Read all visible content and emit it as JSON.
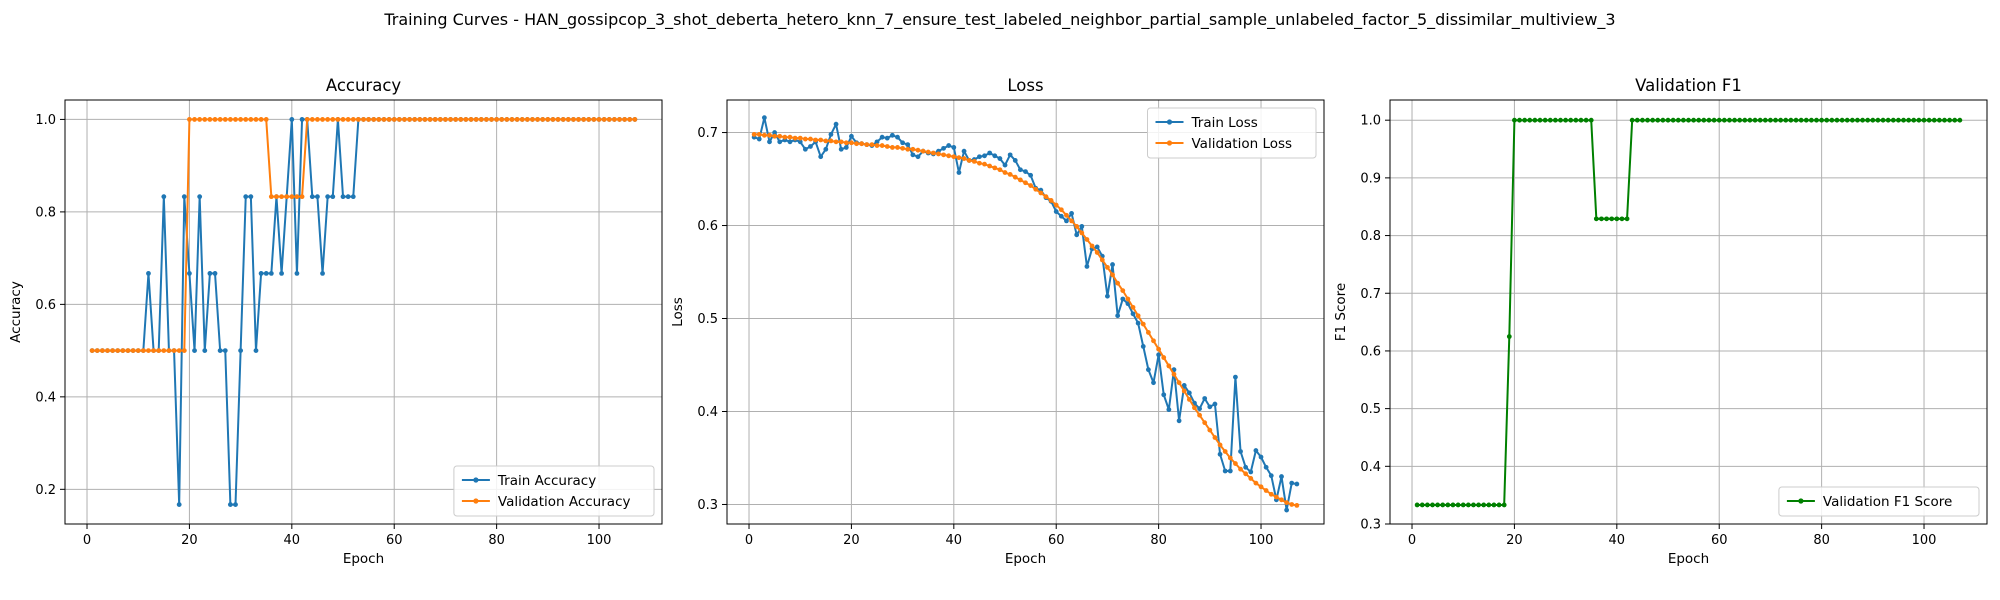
{
  "figure_title": "Training Curves - HAN_gossipcop_3_shot_deberta_hetero_knn_7_ensure_test_labeled_neighbor_partial_sample_unlabeled_factor_5_dissimilar_multiview_3",
  "colors": {
    "blue": "#1f77b4",
    "orange": "#ff7f0e",
    "green": "#008000",
    "grid": "#b0b0b0"
  },
  "chart_data": [
    {
      "type": "line",
      "title": "Accuracy",
      "xlabel": "Epoch",
      "ylabel": "Accuracy",
      "xlim": [
        -4.3,
        112.3
      ],
      "ylim": [
        0.125,
        1.042
      ],
      "xticks": [
        0,
        20,
        40,
        60,
        80,
        100
      ],
      "yticks": [
        0.2,
        0.4,
        0.6,
        0.8,
        1.0
      ],
      "ytick_labels": [
        "0.2",
        "0.4",
        "0.6",
        "0.8",
        "1.0"
      ],
      "grid": true,
      "legend_position": "lower-right",
      "series": [
        {
          "name": "Train Accuracy",
          "color": "#1f77b4",
          "x_start": 1,
          "values": [
            0.5,
            0.5,
            0.5,
            0.5,
            0.5,
            0.5,
            0.5,
            0.5,
            0.5,
            0.5,
            0.5,
            0.667,
            0.5,
            0.5,
            0.833,
            0.5,
            0.5,
            0.167,
            0.833,
            0.667,
            0.5,
            0.833,
            0.5,
            0.667,
            0.667,
            0.5,
            0.5,
            0.167,
            0.167,
            0.5,
            0.833,
            0.833,
            0.5,
            0.667,
            0.667,
            0.667,
            0.833,
            0.667,
            0.833,
            1.0,
            0.667,
            1.0,
            1.0,
            0.833,
            0.833,
            0.667,
            0.833,
            0.833,
            1.0,
            0.833,
            0.833,
            0.833,
            1.0,
            1.0,
            1.0,
            1.0,
            1.0,
            1.0,
            1.0,
            1.0,
            1.0,
            1.0,
            1.0,
            1.0,
            1.0,
            1.0,
            1.0,
            1.0,
            1.0,
            1.0,
            1.0,
            1.0,
            1.0,
            1.0,
            1.0,
            1.0,
            1.0,
            1.0,
            1.0,
            1.0,
            1.0,
            1.0,
            1.0,
            1.0,
            1.0,
            1.0,
            1.0,
            1.0,
            1.0,
            1.0,
            1.0,
            1.0,
            1.0,
            1.0,
            1.0,
            1.0,
            1.0,
            1.0,
            1.0,
            1.0,
            1.0,
            1.0,
            1.0,
            1.0,
            1.0,
            1.0,
            1.0
          ]
        },
        {
          "name": "Validation Accuracy",
          "color": "#ff7f0e",
          "x_start": 1,
          "values": [
            0.5,
            0.5,
            0.5,
            0.5,
            0.5,
            0.5,
            0.5,
            0.5,
            0.5,
            0.5,
            0.5,
            0.5,
            0.5,
            0.5,
            0.5,
            0.5,
            0.5,
            0.5,
            0.5,
            1.0,
            1.0,
            1.0,
            1.0,
            1.0,
            1.0,
            1.0,
            1.0,
            1.0,
            1.0,
            1.0,
            1.0,
            1.0,
            1.0,
            1.0,
            1.0,
            0.833,
            0.833,
            0.833,
            0.833,
            0.833,
            0.833,
            0.833,
            1.0,
            1.0,
            1.0,
            1.0,
            1.0,
            1.0,
            1.0,
            1.0,
            1.0,
            1.0,
            1.0,
            1.0,
            1.0,
            1.0,
            1.0,
            1.0,
            1.0,
            1.0,
            1.0,
            1.0,
            1.0,
            1.0,
            1.0,
            1.0,
            1.0,
            1.0,
            1.0,
            1.0,
            1.0,
            1.0,
            1.0,
            1.0,
            1.0,
            1.0,
            1.0,
            1.0,
            1.0,
            1.0,
            1.0,
            1.0,
            1.0,
            1.0,
            1.0,
            1.0,
            1.0,
            1.0,
            1.0,
            1.0,
            1.0,
            1.0,
            1.0,
            1.0,
            1.0,
            1.0,
            1.0,
            1.0,
            1.0,
            1.0,
            1.0,
            1.0,
            1.0,
            1.0,
            1.0,
            1.0,
            1.0
          ]
        }
      ]
    },
    {
      "type": "line",
      "title": "Loss",
      "xlabel": "Epoch",
      "ylabel": "Loss",
      "xlim": [
        -4.3,
        112.3
      ],
      "ylim": [
        0.279,
        0.735
      ],
      "xticks": [
        0,
        20,
        40,
        60,
        80,
        100
      ],
      "yticks": [
        0.3,
        0.4,
        0.5,
        0.6,
        0.7
      ],
      "ytick_labels": [
        "0.3",
        "0.4",
        "0.5",
        "0.6",
        "0.7"
      ],
      "grid": true,
      "legend_position": "upper-right",
      "series": [
        {
          "name": "Train Loss",
          "color": "#1f77b4",
          "x_start": 1,
          "values": [
            0.695,
            0.693,
            0.716,
            0.69,
            0.7,
            0.69,
            0.692,
            0.69,
            0.692,
            0.69,
            0.682,
            0.685,
            0.69,
            0.674,
            0.682,
            0.698,
            0.709,
            0.682,
            0.684,
            0.696,
            0.689,
            0.688,
            0.687,
            0.686,
            0.69,
            0.695,
            0.694,
            0.697,
            0.695,
            0.689,
            0.687,
            0.676,
            0.674,
            0.68,
            0.678,
            0.677,
            0.68,
            0.683,
            0.686,
            0.684,
            0.657,
            0.68,
            0.67,
            0.671,
            0.674,
            0.675,
            0.678,
            0.675,
            0.672,
            0.665,
            0.676,
            0.67,
            0.66,
            0.658,
            0.654,
            0.64,
            0.638,
            0.63,
            0.626,
            0.615,
            0.61,
            0.605,
            0.613,
            0.59,
            0.599,
            0.556,
            0.575,
            0.577,
            0.567,
            0.524,
            0.558,
            0.503,
            0.521,
            0.516,
            0.505,
            0.495,
            0.47,
            0.445,
            0.431,
            0.461,
            0.418,
            0.402,
            0.445,
            0.39,
            0.428,
            0.42,
            0.409,
            0.403,
            0.414,
            0.405,
            0.408,
            0.354,
            0.336,
            0.336,
            0.437,
            0.357,
            0.34,
            0.335,
            0.358,
            0.351,
            0.34,
            0.331,
            0.305,
            0.33,
            0.294,
            0.323,
            0.322
          ]
        },
        {
          "name": "Validation Loss",
          "color": "#ff7f0e",
          "x_start": 1,
          "values": [
            0.698,
            0.698,
            0.697,
            0.697,
            0.696,
            0.696,
            0.695,
            0.695,
            0.694,
            0.694,
            0.693,
            0.693,
            0.692,
            0.692,
            0.691,
            0.691,
            0.69,
            0.69,
            0.689,
            0.689,
            0.688,
            0.688,
            0.687,
            0.687,
            0.686,
            0.686,
            0.685,
            0.684,
            0.684,
            0.683,
            0.682,
            0.682,
            0.681,
            0.68,
            0.679,
            0.678,
            0.677,
            0.676,
            0.675,
            0.674,
            0.673,
            0.672,
            0.67,
            0.669,
            0.667,
            0.666,
            0.664,
            0.662,
            0.66,
            0.657,
            0.655,
            0.652,
            0.649,
            0.646,
            0.643,
            0.639,
            0.635,
            0.631,
            0.627,
            0.622,
            0.617,
            0.611,
            0.605,
            0.599,
            0.592,
            0.585,
            0.578,
            0.571,
            0.563,
            0.555,
            0.547,
            0.538,
            0.53,
            0.521,
            0.512,
            0.503,
            0.494,
            0.485,
            0.476,
            0.467,
            0.458,
            0.449,
            0.44,
            0.431,
            0.422,
            0.413,
            0.404,
            0.396,
            0.388,
            0.38,
            0.372,
            0.364,
            0.357,
            0.35,
            0.344,
            0.338,
            0.333,
            0.328,
            0.323,
            0.319,
            0.315,
            0.311,
            0.308,
            0.305,
            0.302,
            0.3,
            0.299
          ]
        }
      ]
    },
    {
      "type": "line",
      "title": "Validation F1",
      "xlabel": "Epoch",
      "ylabel": "F1 Score",
      "xlim": [
        -4.3,
        112.3
      ],
      "ylim": [
        0.3,
        1.035
      ],
      "xticks": [
        0,
        20,
        40,
        60,
        80,
        100
      ],
      "yticks": [
        0.3,
        0.4,
        0.5,
        0.6,
        0.7,
        0.8,
        0.9,
        1.0
      ],
      "ytick_labels": [
        "0.3",
        "0.4",
        "0.5",
        "0.6",
        "0.7",
        "0.8",
        "0.9",
        "1.0"
      ],
      "grid": true,
      "legend_position": "lower-right",
      "series": [
        {
          "name": "Validation F1 Score",
          "color": "#008000",
          "x_start": 1,
          "values": [
            0.333,
            0.333,
            0.333,
            0.333,
            0.333,
            0.333,
            0.333,
            0.333,
            0.333,
            0.333,
            0.333,
            0.333,
            0.333,
            0.333,
            0.333,
            0.333,
            0.333,
            0.333,
            0.625,
            1.0,
            1.0,
            1.0,
            1.0,
            1.0,
            1.0,
            1.0,
            1.0,
            1.0,
            1.0,
            1.0,
            1.0,
            1.0,
            1.0,
            1.0,
            1.0,
            0.829,
            0.829,
            0.829,
            0.829,
            0.829,
            0.829,
            0.829,
            1.0,
            1.0,
            1.0,
            1.0,
            1.0,
            1.0,
            1.0,
            1.0,
            1.0,
            1.0,
            1.0,
            1.0,
            1.0,
            1.0,
            1.0,
            1.0,
            1.0,
            1.0,
            1.0,
            1.0,
            1.0,
            1.0,
            1.0,
            1.0,
            1.0,
            1.0,
            1.0,
            1.0,
            1.0,
            1.0,
            1.0,
            1.0,
            1.0,
            1.0,
            1.0,
            1.0,
            1.0,
            1.0,
            1.0,
            1.0,
            1.0,
            1.0,
            1.0,
            1.0,
            1.0,
            1.0,
            1.0,
            1.0,
            1.0,
            1.0,
            1.0,
            1.0,
            1.0,
            1.0,
            1.0,
            1.0,
            1.0,
            1.0,
            1.0,
            1.0,
            1.0,
            1.0,
            1.0,
            1.0,
            1.0
          ]
        }
      ]
    }
  ]
}
